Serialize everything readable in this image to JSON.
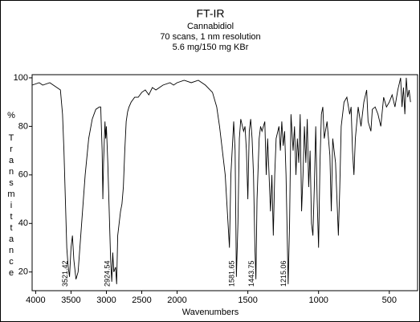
{
  "chart_data": {
    "type": "line",
    "title": "FT-IR",
    "subtitle": [
      "Cannabidiol",
      "70 scans, 1 nm resolution",
      "5.6 mg/150 mg KBr"
    ],
    "x_label": "Wavenumbers",
    "y_label": "% Transmittance",
    "xlim": [
      4050,
      300
    ],
    "ylim": [
      12.3,
      101.3
    ],
    "xscale": {
      "break": 2000,
      "factor": 2
    },
    "xticks": [
      4000,
      3500,
      3000,
      2500,
      2000,
      1500,
      1000,
      500
    ],
    "yticks": [
      20,
      40,
      60,
      80,
      100
    ],
    "grid": false,
    "peak_labels": [
      3521.42,
      2924.54,
      1581.65,
      1443.75,
      1215.06
    ],
    "series": [
      {
        "color": "#000000",
        "x": [
          4050,
          3950,
          3900,
          3800,
          3700,
          3650,
          3620,
          3600,
          3580,
          3560,
          3540,
          3521,
          3500,
          3480,
          3460,
          3430,
          3400,
          3350,
          3300,
          3250,
          3200,
          3150,
          3100,
          3080,
          3060,
          3050,
          3040,
          3020,
          3010,
          3000,
          2980,
          2960,
          2940,
          2924,
          2910,
          2895,
          2870,
          2855,
          2840,
          2820,
          2800,
          2780,
          2760,
          2740,
          2720,
          2700,
          2680,
          2650,
          2600,
          2550,
          2500,
          2450,
          2400,
          2350,
          2300,
          2200,
          2100,
          2050,
          2000,
          1950,
          1900,
          1850,
          1800,
          1750,
          1720,
          1700,
          1680,
          1660,
          1650,
          1640,
          1630,
          1620,
          1600,
          1590,
          1581,
          1570,
          1560,
          1550,
          1530,
          1520,
          1510,
          1500,
          1490,
          1480,
          1470,
          1460,
          1450,
          1443,
          1435,
          1420,
          1410,
          1400,
          1380,
          1370,
          1360,
          1340,
          1330,
          1320,
          1310,
          1300,
          1280,
          1270,
          1260,
          1250,
          1240,
          1230,
          1215,
          1205,
          1195,
          1180,
          1170,
          1160,
          1150,
          1140,
          1130,
          1120,
          1110,
          1100,
          1090,
          1080,
          1070,
          1060,
          1050,
          1040,
          1030,
          1020,
          1010,
          1000,
          990,
          980,
          970,
          960,
          940,
          920,
          910,
          900,
          880,
          860,
          850,
          840,
          820,
          800,
          780,
          770,
          760,
          750,
          740,
          720,
          700,
          680,
          660,
          650,
          630,
          620,
          600,
          580,
          560,
          540,
          520,
          500,
          480,
          460,
          440,
          420,
          410,
          400,
          390,
          380,
          370,
          360,
          350
        ],
        "values": [
          97,
          98,
          97,
          98,
          96,
          95,
          85,
          70,
          50,
          30,
          22,
          18,
          30,
          35,
          25,
          17,
          20,
          40,
          60,
          75,
          83,
          87,
          88,
          88,
          70,
          50,
          65,
          82,
          75,
          80,
          65,
          45,
          25,
          16,
          28,
          20,
          22,
          15,
          35,
          40,
          45,
          48,
          55,
          70,
          82,
          86,
          88,
          90,
          92,
          92,
          94,
          95,
          93,
          96,
          95,
          97,
          98,
          97,
          98,
          99,
          98,
          99,
          97,
          94,
          88,
          80,
          70,
          60,
          50,
          40,
          30,
          60,
          82,
          70,
          18,
          40,
          75,
          83,
          78,
          80,
          70,
          50,
          78,
          83,
          75,
          60,
          30,
          17,
          50,
          75,
          80,
          78,
          82,
          60,
          75,
          45,
          60,
          35,
          60,
          75,
          80,
          70,
          82,
          72,
          78,
          60,
          15,
          40,
          85,
          70,
          80,
          60,
          75,
          65,
          85,
          45,
          60,
          80,
          65,
          83,
          55,
          70,
          40,
          35,
          55,
          80,
          50,
          30,
          65,
          85,
          88,
          75,
          82,
          68,
          45,
          75,
          65,
          35,
          55,
          80,
          90,
          92,
          85,
          88,
          70,
          60,
          75,
          88,
          80,
          90,
          95,
          82,
          78,
          87,
          88,
          85,
          80,
          92,
          88,
          90,
          93,
          88,
          95,
          100,
          88,
          96,
          85,
          100,
          92,
          95,
          90
        ]
      }
    ]
  }
}
